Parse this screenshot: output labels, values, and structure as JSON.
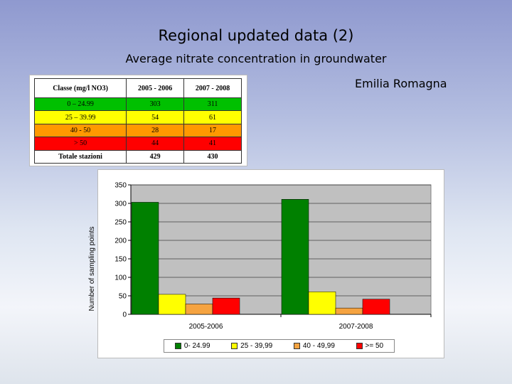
{
  "slide": {
    "title": "Regional updated data (2)",
    "subtitle": "Average nitrate concentration in groundwater",
    "region": "Emilia Romagna"
  },
  "table": {
    "headers": [
      "Classe (mg/l NO3)",
      "2005 - 2006",
      "2007 - 2008"
    ],
    "rows": [
      {
        "class": "0 – 24.99",
        "v1": "303",
        "v2": "311",
        "color": "#00c000"
      },
      {
        "class": "25 – 39.99",
        "v1": "54",
        "v2": "61",
        "color": "#ffff00"
      },
      {
        "class": "40 - 50",
        "v1": "28",
        "v2": "17",
        "color": "#ff9900"
      },
      {
        "class": "> 50",
        "v1": "44",
        "v2": "41",
        "color": "#ff0000"
      }
    ],
    "total": {
      "label": "Totale stazioni",
      "v1": "429",
      "v2": "430"
    }
  },
  "chart_data": {
    "type": "bar",
    "categories": [
      "2005-2006",
      "2007-2008"
    ],
    "series": [
      {
        "name": "0- 24.99",
        "values": [
          303,
          311
        ],
        "color": "#008000"
      },
      {
        "name": "25 - 39,99",
        "values": [
          54,
          61
        ],
        "color": "#ffff00"
      },
      {
        "name": "40 - 49,99",
        "values": [
          28,
          17
        ],
        "color": "#f5a340"
      },
      {
        "name": ">= 50",
        "values": [
          44,
          41
        ],
        "color": "#ff0000"
      }
    ],
    "ylabel": "Number of sampling points",
    "ylim": [
      0,
      350
    ],
    "yticks": [
      0,
      50,
      100,
      150,
      200,
      250,
      300,
      350
    ],
    "grid": true,
    "plot_background": "#c0c0c0",
    "legend": "bottom"
  }
}
